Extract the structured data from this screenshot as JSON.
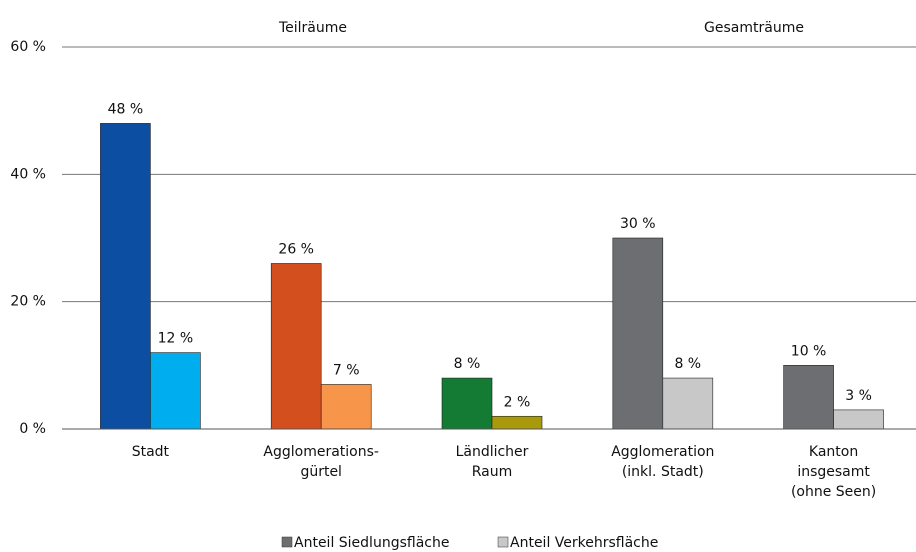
{
  "chart_data": {
    "type": "bar",
    "annotations": [
      "Teilräume",
      "Gesamträume"
    ],
    "categories": [
      "Stadt",
      "Agglomerations-\ngürtel",
      "Ländlicher\nRaum",
      "Agglomeration\n(inkl. Stadt)",
      "Kanton\ninsgesamt\n(ohne Seen)"
    ],
    "series": [
      {
        "name": "Anteil Siedlungsfläche",
        "color": "#6d6e71",
        "bar_colors": [
          "#0b4ea2",
          "#d44f1e",
          "#137b34",
          "#6d6e71",
          "#6d6e71"
        ],
        "values": [
          48,
          26,
          8,
          30,
          10
        ],
        "value_labels": [
          "48 %",
          "26 %",
          "8 %",
          "30 %",
          "10 %"
        ]
      },
      {
        "name": "Anteil Verkehrsfläche",
        "color": "#c8c8c8",
        "bar_colors": [
          "#00aeef",
          "#f7964b",
          "#a89a0a",
          "#c8c8c8",
          "#c8c8c8"
        ],
        "values": [
          12,
          7,
          2,
          8,
          3
        ],
        "value_labels": [
          "12 %",
          "7 %",
          "2 %",
          "8 %",
          "3 %"
        ]
      }
    ],
    "ylim": [
      0,
      60
    ],
    "yticks": [
      {
        "value": 0,
        "label": "0 %"
      },
      {
        "value": 20,
        "label": "20 %"
      },
      {
        "value": 40,
        "label": "40 %"
      },
      {
        "value": 60,
        "label": "60 %"
      }
    ],
    "grid": true
  }
}
